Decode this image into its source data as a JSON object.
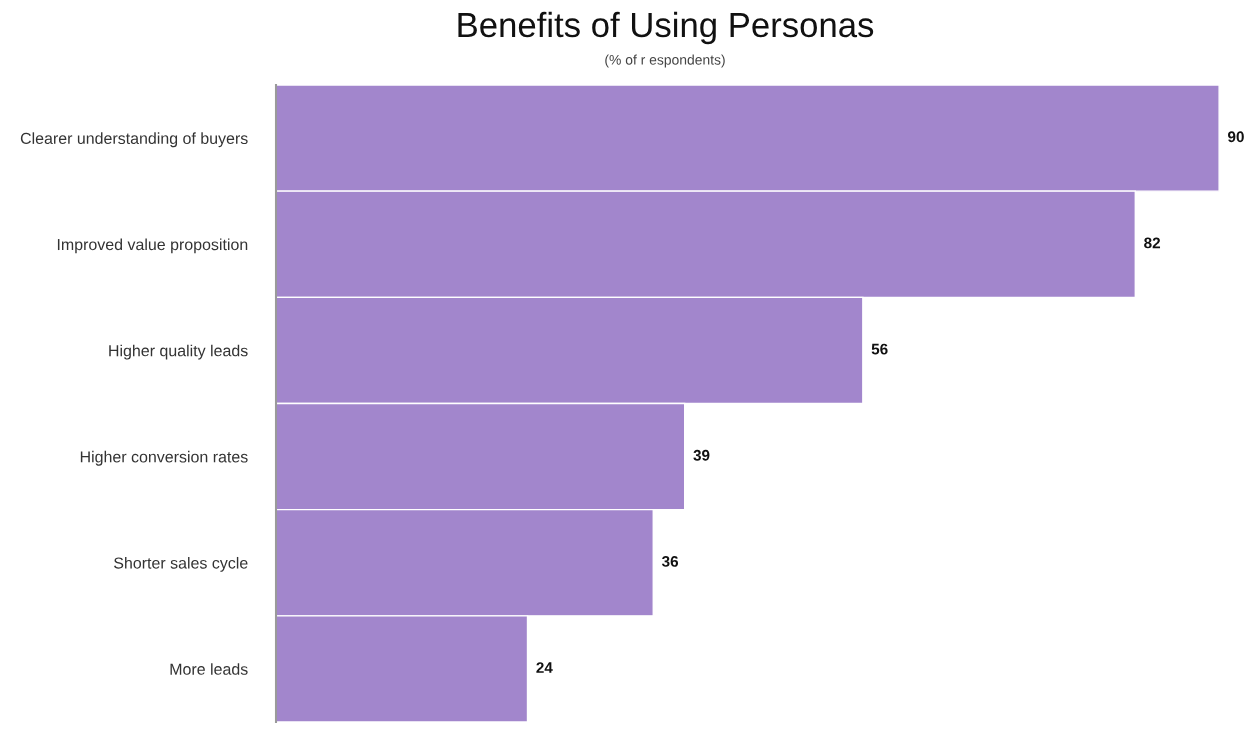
{
  "chart_data": {
    "type": "bar",
    "orientation": "horizontal",
    "title": "Benefits of Using Personas",
    "subtitle": "(% of r espondents)",
    "categories": [
      "Clearer understanding of buyers",
      "Improved value proposition",
      "Higher quality leads",
      "Higher conversion rates",
      "Shorter sales cycle",
      "More leads"
    ],
    "values": [
      90,
      82,
      56,
      39,
      36,
      24
    ],
    "color": "#a286cc",
    "data_labels": true
  }
}
